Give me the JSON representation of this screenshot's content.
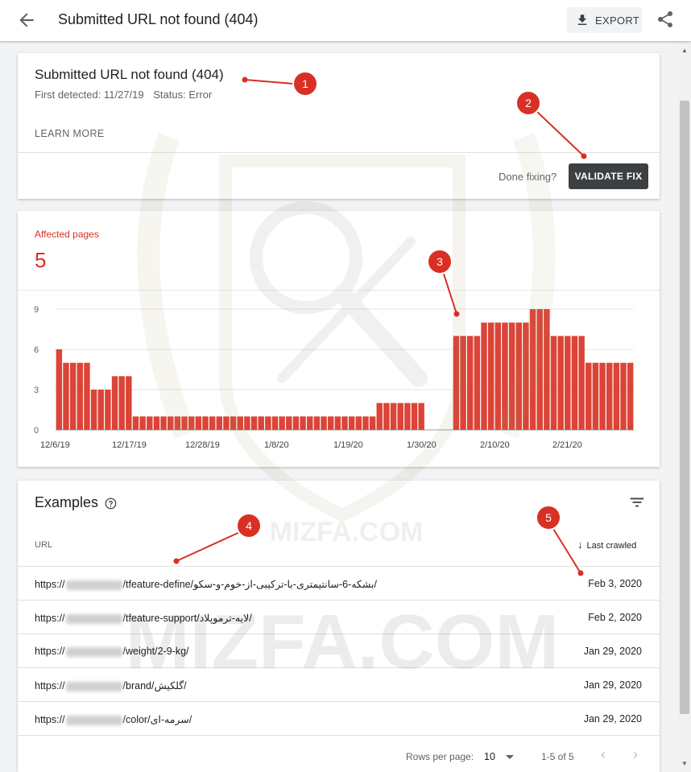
{
  "header": {
    "title": "Submitted URL not found (404)",
    "export_label": "EXPORT",
    "back_icon": "arrow-back-icon",
    "share_icon": "share-icon"
  },
  "issue_card": {
    "title": "Submitted URL not found (404)",
    "first_detected": "First detected: 11/27/19",
    "status": "Status: Error",
    "learn_more": "LEARN MORE",
    "done_fixing": "Done fixing?",
    "validate_fix": "VALIDATE FIX"
  },
  "affected": {
    "label": "Affected pages",
    "value": "5"
  },
  "chart_data": {
    "type": "bar",
    "title": "",
    "xlabel": "",
    "ylabel": "",
    "ylim": [
      0,
      9
    ],
    "yticks": [
      "0",
      "3",
      "6",
      "9"
    ],
    "xtick_labels": [
      "12/6/19",
      "12/17/19",
      "12/28/19",
      "1/8/20",
      "1/19/20",
      "1/30/20",
      "2/10/20",
      "2/21/20"
    ],
    "grid": true,
    "color": "#db4437",
    "values": [
      6,
      5,
      5,
      5,
      5,
      3,
      3,
      3,
      4,
      4,
      4,
      1,
      1,
      1,
      1,
      1,
      1,
      1,
      1,
      1,
      1,
      1,
      1,
      1,
      1,
      1,
      1,
      1,
      1,
      1,
      1,
      1,
      1,
      1,
      1,
      1,
      1,
      1,
      1,
      1,
      1,
      1,
      1,
      1,
      1,
      1,
      2,
      2,
      2,
      2,
      2,
      2,
      2,
      0,
      0,
      0,
      0,
      7,
      7,
      7,
      7,
      8,
      8,
      8,
      8,
      8,
      8,
      8,
      9,
      9,
      9,
      7,
      7,
      7,
      7,
      7,
      5,
      5,
      5,
      5,
      5,
      5,
      5
    ]
  },
  "examples": {
    "title": "Examples",
    "help_icon": "help-icon",
    "filter_icon": "filter-icon",
    "col_url": "URL",
    "col_last_crawled": "Last crawled",
    "rows": [
      {
        "prefix": "https://",
        "path": "/tfeature-define/بشکه-6-سانتیمتری-با-ترکیبی-از-خوم-و-سکو/",
        "date": "Feb 3, 2020"
      },
      {
        "prefix": "https://",
        "path": "/tfeature-support/لایه-ترموپلاد/",
        "date": "Feb 2, 2020"
      },
      {
        "prefix": "https://",
        "path": "/weight/2-9-kg/",
        "date": "Jan 29, 2020"
      },
      {
        "prefix": "https://",
        "path": "/brand/گلکیش/",
        "date": "Jan 29, 2020"
      },
      {
        "prefix": "https://",
        "path": "/color/سرمه-ای/",
        "date": "Jan 29, 2020"
      }
    ],
    "rows_per_page_label": "Rows per page:",
    "rows_per_page_value": "10",
    "range": "1-5 of 5"
  },
  "annotations": [
    "1",
    "2",
    "3",
    "4",
    "5"
  ],
  "watermark": {
    "small": "MIZFA.COM",
    "large": "MIZFA.COM"
  }
}
